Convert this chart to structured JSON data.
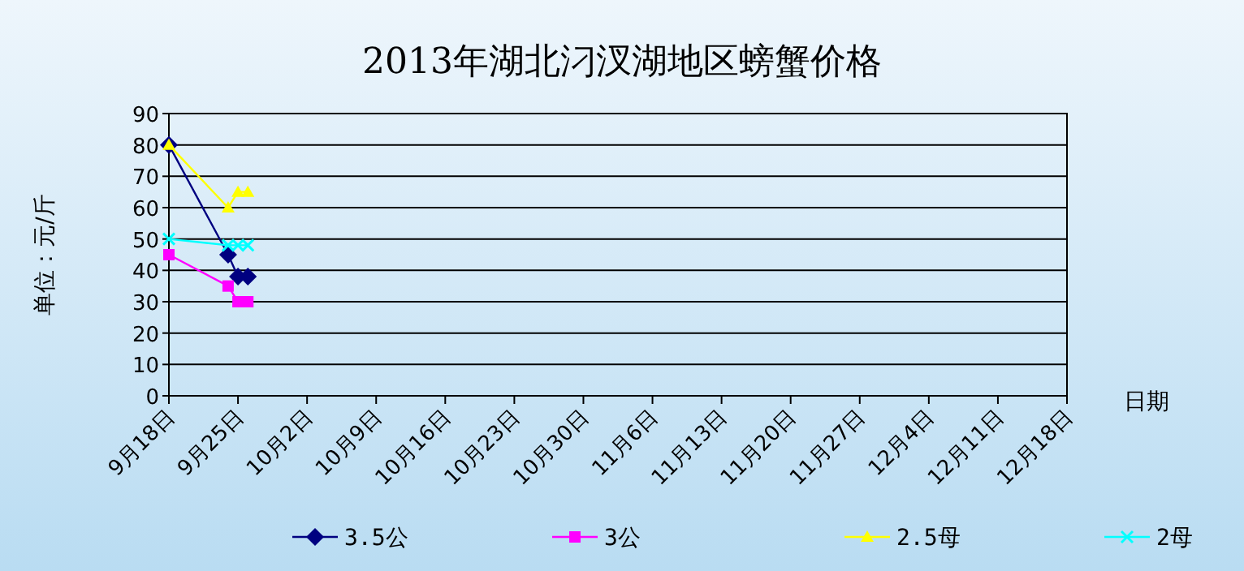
{
  "chart_data": {
    "type": "line",
    "title": "2013年湖北汈汊湖地区螃蟹价格",
    "xlabel": "日期",
    "ylabel": "单位：元/斤",
    "series": [
      {
        "name": "3.5公",
        "color": "#000080",
        "marker": "diamond",
        "x": [
          "2013-09-18",
          "2013-09-24",
          "2013-09-25",
          "2013-09-26"
        ],
        "values": [
          80,
          45,
          38,
          38
        ]
      },
      {
        "name": "3公",
        "color": "#ff00ff",
        "marker": "square",
        "x": [
          "2013-09-18",
          "2013-09-24",
          "2013-09-25",
          "2013-09-26"
        ],
        "values": [
          45,
          35,
          30,
          30
        ]
      },
      {
        "name": "2.5母",
        "color": "#ffff00",
        "marker": "triangle",
        "x": [
          "2013-09-18",
          "2013-09-24",
          "2013-09-25",
          "2013-09-26"
        ],
        "values": [
          80,
          60,
          65,
          65
        ]
      },
      {
        "name": "2母",
        "color": "#00ffff",
        "marker": "cross",
        "x": [
          "2013-09-18",
          "2013-09-24",
          "2013-09-25",
          "2013-09-26"
        ],
        "values": [
          50,
          48,
          48,
          48
        ]
      }
    ],
    "xlim": [
      "2013-09-18",
      "2013-12-18"
    ],
    "xticks": [
      {
        "value": "2013-09-18",
        "label": "9月18日"
      },
      {
        "value": "2013-09-25",
        "label": "9月25日"
      },
      {
        "value": "2013-10-02",
        "label": "10月2日"
      },
      {
        "value": "2013-10-09",
        "label": "10月9日"
      },
      {
        "value": "2013-10-16",
        "label": "10月16日"
      },
      {
        "value": "2013-10-23",
        "label": "10月23日"
      },
      {
        "value": "2013-10-30",
        "label": "10月30日"
      },
      {
        "value": "2013-11-06",
        "label": "11月6日"
      },
      {
        "value": "2013-11-13",
        "label": "11月13日"
      },
      {
        "value": "2013-11-20",
        "label": "11月20日"
      },
      {
        "value": "2013-11-27",
        "label": "11月27日"
      },
      {
        "value": "2013-12-04",
        "label": "12月4日"
      },
      {
        "value": "2013-12-11",
        "label": "12月11日"
      },
      {
        "value": "2013-12-18",
        "label": "12月18日"
      }
    ],
    "ylim": [
      0,
      90
    ],
    "yticks": [
      0,
      10,
      20,
      30,
      40,
      50,
      60,
      70,
      80,
      90
    ],
    "grid": "y",
    "legend": "bottom"
  }
}
